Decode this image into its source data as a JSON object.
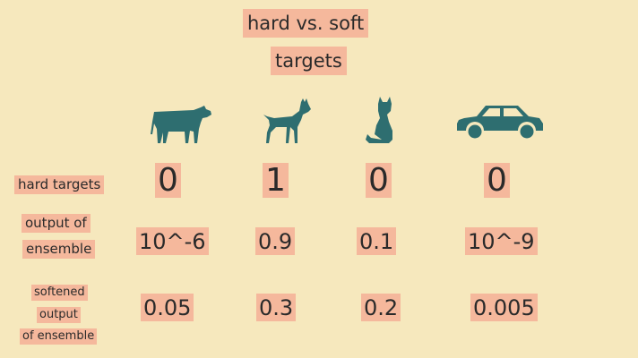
{
  "title": {
    "line1": "hard vs. soft",
    "line2": "targets"
  },
  "icons": [
    "cow-icon",
    "dog-icon",
    "cat-icon",
    "car-icon"
  ],
  "rows": {
    "hard_targets": {
      "label": "hard targets",
      "values": [
        "0",
        "1",
        "0",
        "0"
      ]
    },
    "output_of_ensemble": {
      "label_lines": [
        "output of",
        "ensemble"
      ],
      "values": [
        "10^-6",
        "0.9",
        "0.1",
        "10^-9"
      ]
    },
    "softened_output": {
      "label_lines": [
        "softened",
        "output",
        "of ensemble"
      ],
      "values": [
        "0.05",
        "0.3",
        "0.2",
        "0.005"
      ]
    }
  },
  "colors": {
    "background": "#f6e8bd",
    "highlight": "#f5b89c",
    "icon": "#2e6e70"
  }
}
